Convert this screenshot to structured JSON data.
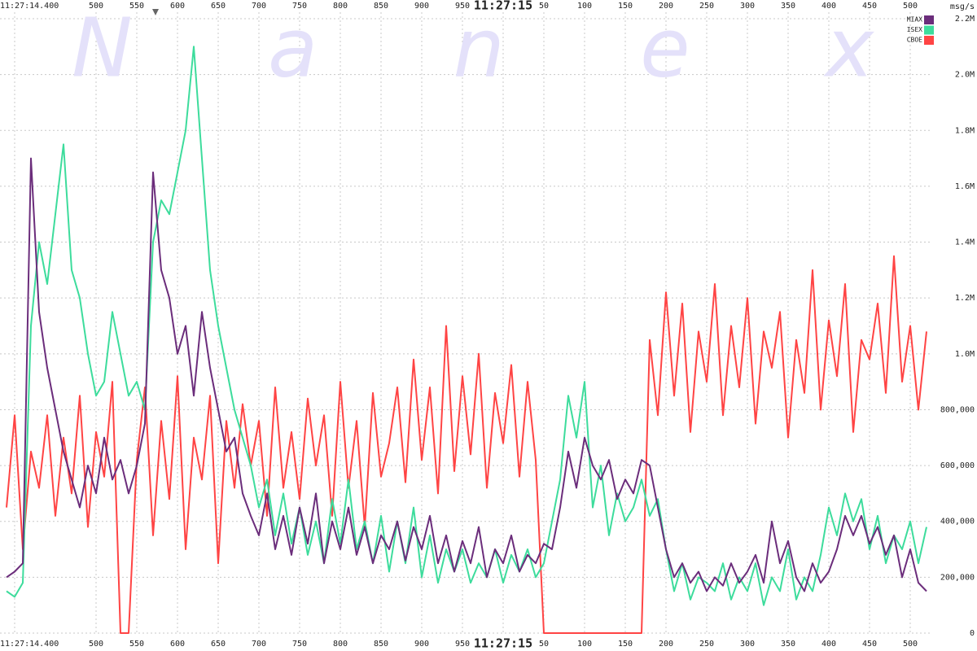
{
  "chart_data": {
    "type": "line",
    "watermark": "Nanex",
    "y_unit": "msg/s",
    "grid": true,
    "legend": "top-right",
    "xlim": [
      382,
      1527
    ],
    "ylim": [
      0,
      2200000
    ],
    "xticks": [
      {
        "value": 400,
        "label": "11:27:14.400"
      },
      500,
      550,
      600,
      650,
      700,
      750,
      800,
      850,
      900,
      950,
      {
        "value": 1000,
        "label": "11:27:15"
      },
      {
        "value": 1050,
        "label": "50"
      },
      {
        "value": 1100,
        "label": "100"
      },
      {
        "value": 1150,
        "label": "150"
      },
      {
        "value": 1200,
        "label": "200"
      },
      {
        "value": 1250,
        "label": "250"
      },
      {
        "value": 1300,
        "label": "300"
      },
      {
        "value": 1350,
        "label": "350"
      },
      {
        "value": 1400,
        "label": "400"
      },
      {
        "value": 1450,
        "label": "450"
      },
      {
        "value": 1500,
        "label": "500"
      }
    ],
    "yticks": [
      0,
      {
        "value": 200000,
        "label": "200,000"
      },
      {
        "value": 400000,
        "label": "400,000"
      },
      {
        "value": 600000,
        "label": "600,000"
      },
      {
        "value": 800000,
        "label": "800,000"
      },
      {
        "value": 1000000,
        "label": "1.0M"
      },
      {
        "value": 1200000,
        "label": "1.2M"
      },
      {
        "value": 1400000,
        "label": "1.4M"
      },
      {
        "value": 1600000,
        "label": "1.6M"
      },
      {
        "value": 1800000,
        "label": "1.8M"
      },
      {
        "value": 2000000,
        "label": "2.0M"
      },
      {
        "value": 2200000,
        "label": "2.2M"
      }
    ],
    "x": [
      390,
      400,
      410,
      420,
      430,
      440,
      450,
      460,
      470,
      480,
      490,
      500,
      510,
      520,
      530,
      540,
      550,
      560,
      570,
      580,
      590,
      600,
      610,
      620,
      630,
      640,
      650,
      660,
      670,
      680,
      690,
      700,
      710,
      720,
      730,
      740,
      750,
      760,
      770,
      780,
      790,
      800,
      810,
      820,
      830,
      840,
      850,
      860,
      870,
      880,
      890,
      900,
      910,
      920,
      930,
      940,
      950,
      960,
      970,
      980,
      990,
      1000,
      1010,
      1020,
      1030,
      1040,
      1050,
      1060,
      1070,
      1080,
      1090,
      1100,
      1110,
      1120,
      1130,
      1140,
      1150,
      1160,
      1170,
      1180,
      1190,
      1200,
      1210,
      1220,
      1230,
      1240,
      1250,
      1260,
      1270,
      1280,
      1290,
      1300,
      1310,
      1320,
      1330,
      1340,
      1350,
      1360,
      1370,
      1380,
      1390,
      1400,
      1410,
      1420,
      1430,
      1440,
      1450,
      1460,
      1470,
      1480,
      1490,
      1500,
      1510,
      1520
    ],
    "series": [
      {
        "name": "MIAX",
        "color": "#6b2d7b",
        "values": [
          200000,
          220000,
          250000,
          1700000,
          1150000,
          950000,
          800000,
          650000,
          550000,
          450000,
          600000,
          500000,
          700000,
          550000,
          620000,
          500000,
          600000,
          750000,
          1650000,
          1300000,
          1200000,
          1000000,
          1100000,
          850000,
          1150000,
          950000,
          800000,
          650000,
          700000,
          500000,
          420000,
          350000,
          500000,
          300000,
          420000,
          280000,
          450000,
          320000,
          500000,
          250000,
          400000,
          300000,
          450000,
          280000,
          380000,
          250000,
          350000,
          300000,
          400000,
          260000,
          380000,
          300000,
          420000,
          250000,
          350000,
          220000,
          330000,
          250000,
          380000,
          200000,
          300000,
          250000,
          350000,
          220000,
          280000,
          250000,
          320000,
          300000,
          450000,
          650000,
          520000,
          700000,
          600000,
          550000,
          620000,
          480000,
          550000,
          500000,
          620000,
          600000,
          450000,
          300000,
          200000,
          250000,
          180000,
          220000,
          150000,
          200000,
          170000,
          250000,
          180000,
          220000,
          280000,
          180000,
          400000,
          250000,
          330000,
          200000,
          150000,
          250000,
          180000,
          220000,
          300000,
          420000,
          350000,
          420000,
          320000,
          380000,
          280000,
          350000,
          200000,
          300000,
          180000,
          150000
        ]
      },
      {
        "name": "ISEX",
        "color": "#3ddc9c",
        "values": [
          150000,
          130000,
          180000,
          1100000,
          1400000,
          1250000,
          1500000,
          1750000,
          1300000,
          1200000,
          1000000,
          850000,
          900000,
          1150000,
          1000000,
          850000,
          900000,
          800000,
          1400000,
          1550000,
          1500000,
          1650000,
          1800000,
          2100000,
          1700000,
          1300000,
          1100000,
          950000,
          800000,
          700000,
          600000,
          450000,
          550000,
          350000,
          500000,
          320000,
          450000,
          280000,
          400000,
          250000,
          480000,
          320000,
          550000,
          300000,
          400000,
          250000,
          420000,
          220000,
          400000,
          250000,
          450000,
          200000,
          350000,
          180000,
          300000,
          220000,
          300000,
          180000,
          250000,
          200000,
          300000,
          180000,
          280000,
          220000,
          300000,
          200000,
          250000,
          400000,
          550000,
          850000,
          700000,
          900000,
          450000,
          600000,
          350000,
          500000,
          400000,
          450000,
          550000,
          420000,
          480000,
          300000,
          150000,
          250000,
          120000,
          200000,
          180000,
          150000,
          250000,
          120000,
          200000,
          150000,
          250000,
          100000,
          200000,
          150000,
          300000,
          120000,
          200000,
          150000,
          280000,
          450000,
          350000,
          500000,
          400000,
          480000,
          300000,
          420000,
          250000,
          350000,
          300000,
          400000,
          250000,
          380000
        ]
      },
      {
        "name": "CBOE",
        "color": "#ff4444",
        "values": [
          450000,
          780000,
          300000,
          650000,
          520000,
          780000,
          420000,
          700000,
          500000,
          850000,
          380000,
          720000,
          560000,
          900000,
          0,
          0,
          620000,
          880000,
          350000,
          760000,
          480000,
          920000,
          300000,
          700000,
          550000,
          850000,
          250000,
          760000,
          520000,
          820000,
          600000,
          760000,
          420000,
          880000,
          520000,
          720000,
          480000,
          840000,
          600000,
          780000,
          420000,
          900000,
          520000,
          760000,
          380000,
          860000,
          560000,
          680000,
          880000,
          540000,
          980000,
          620000,
          880000,
          500000,
          1100000,
          580000,
          920000,
          640000,
          1000000,
          520000,
          860000,
          680000,
          960000,
          560000,
          900000,
          620000,
          0,
          0,
          0,
          0,
          0,
          0,
          0,
          0,
          0,
          0,
          0,
          0,
          0,
          1050000,
          780000,
          1220000,
          850000,
          1180000,
          720000,
          1080000,
          900000,
          1250000,
          780000,
          1100000,
          880000,
          1200000,
          750000,
          1080000,
          950000,
          1150000,
          700000,
          1050000,
          860000,
          1300000,
          800000,
          1120000,
          920000,
          1250000,
          720000,
          1050000,
          980000,
          1180000,
          860000,
          1350000,
          900000,
          1100000,
          800000,
          1080000
        ]
      }
    ]
  }
}
